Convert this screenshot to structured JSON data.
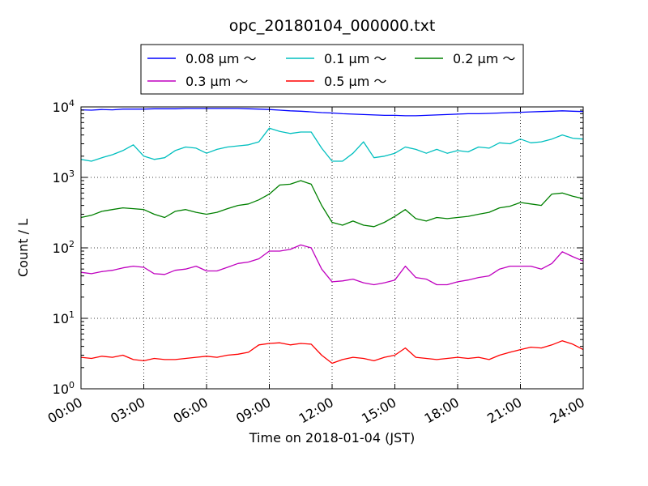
{
  "chart_data": {
    "type": "line",
    "title": "opc_20180104_000000.txt",
    "xlabel": "Time on 2018-01-04 (JST)",
    "ylabel": "Count / L",
    "x_unit": "hours",
    "xlim": [
      0,
      24
    ],
    "ylim": [
      1,
      10000
    ],
    "yscale": "log",
    "grid": true,
    "legend_position": "top-center",
    "x_ticks": [
      "00:00",
      "03:00",
      "06:00",
      "09:00",
      "12:00",
      "15:00",
      "18:00",
      "21:00",
      "24:00"
    ],
    "y_ticks": [
      {
        "base": "10",
        "exp": "0"
      },
      {
        "base": "10",
        "exp": "1"
      },
      {
        "base": "10",
        "exp": "2"
      },
      {
        "base": "10",
        "exp": "3"
      },
      {
        "base": "10",
        "exp": "4"
      }
    ],
    "x": [
      0.0,
      0.5,
      1.0,
      1.5,
      2.0,
      2.5,
      3.0,
      3.5,
      4.0,
      4.5,
      5.0,
      5.5,
      6.0,
      6.5,
      7.0,
      7.5,
      8.0,
      8.5,
      9.0,
      9.5,
      10.0,
      10.5,
      11.0,
      11.5,
      12.0,
      12.5,
      13.0,
      13.5,
      14.0,
      14.5,
      15.0,
      15.5,
      16.0,
      16.5,
      17.0,
      17.5,
      18.0,
      18.5,
      19.0,
      19.5,
      20.0,
      20.5,
      21.0,
      21.5,
      22.0,
      22.5,
      23.0,
      23.5,
      24.0
    ],
    "series": [
      {
        "name": "0.08 μm ～",
        "color": "#0000ff",
        "values": [
          9100,
          9000,
          9200,
          9100,
          9300,
          9300,
          9300,
          9400,
          9400,
          9400,
          9500,
          9500,
          9500,
          9500,
          9500,
          9500,
          9400,
          9300,
          9200,
          9000,
          8800,
          8700,
          8500,
          8300,
          8200,
          8000,
          7900,
          7800,
          7700,
          7600,
          7600,
          7500,
          7500,
          7600,
          7700,
          7800,
          7900,
          8000,
          8000,
          8100,
          8200,
          8300,
          8400,
          8500,
          8600,
          8700,
          8800,
          8700,
          8600
        ]
      },
      {
        "name": "0.1 μm ～",
        "color": "#00bfbf",
        "values": [
          1800,
          1700,
          1900,
          2100,
          2400,
          2900,
          2000,
          1800,
          1900,
          2400,
          2700,
          2600,
          2200,
          2500,
          2700,
          2800,
          2900,
          3200,
          5000,
          4500,
          4200,
          4400,
          4400,
          2600,
          1700,
          1700,
          2200,
          3200,
          1900,
          2000,
          2200,
          2700,
          2500,
          2200,
          2500,
          2200,
          2400,
          2300,
          2700,
          2600,
          3100,
          3000,
          3500,
          3100,
          3200,
          3500,
          4000,
          3600,
          3500
        ]
      },
      {
        "name": "0.2 μm ～",
        "color": "#008000",
        "values": [
          270,
          290,
          330,
          350,
          370,
          360,
          350,
          300,
          270,
          330,
          350,
          320,
          300,
          320,
          360,
          400,
          420,
          480,
          580,
          780,
          800,
          900,
          800,
          400,
          230,
          210,
          240,
          210,
          200,
          230,
          280,
          350,
          260,
          240,
          270,
          260,
          270,
          280,
          300,
          320,
          370,
          390,
          440,
          420,
          400,
          580,
          600,
          540,
          500
        ]
      },
      {
        "name": "0.3 μm ～",
        "color": "#bf00bf",
        "values": [
          45,
          43,
          46,
          48,
          52,
          55,
          53,
          43,
          42,
          48,
          50,
          55,
          47,
          47,
          53,
          60,
          63,
          70,
          90,
          90,
          95,
          110,
          100,
          50,
          33,
          34,
          36,
          32,
          30,
          32,
          35,
          55,
          38,
          36,
          30,
          30,
          33,
          35,
          38,
          40,
          50,
          55,
          55,
          55,
          50,
          60,
          88,
          75,
          65
        ]
      },
      {
        "name": "0.5 μm ～",
        "color": "#ff0000",
        "values": [
          2.8,
          2.7,
          2.9,
          2.8,
          3.0,
          2.6,
          2.5,
          2.7,
          2.6,
          2.6,
          2.7,
          2.8,
          2.9,
          2.8,
          3.0,
          3.1,
          3.3,
          4.2,
          4.4,
          4.5,
          4.2,
          4.4,
          4.3,
          3.0,
          2.3,
          2.6,
          2.8,
          2.7,
          2.5,
          2.8,
          3.0,
          3.8,
          2.8,
          2.7,
          2.6,
          2.7,
          2.8,
          2.7,
          2.8,
          2.6,
          3.0,
          3.3,
          3.6,
          3.9,
          3.8,
          4.2,
          4.8,
          4.3,
          3.6
        ]
      }
    ]
  }
}
